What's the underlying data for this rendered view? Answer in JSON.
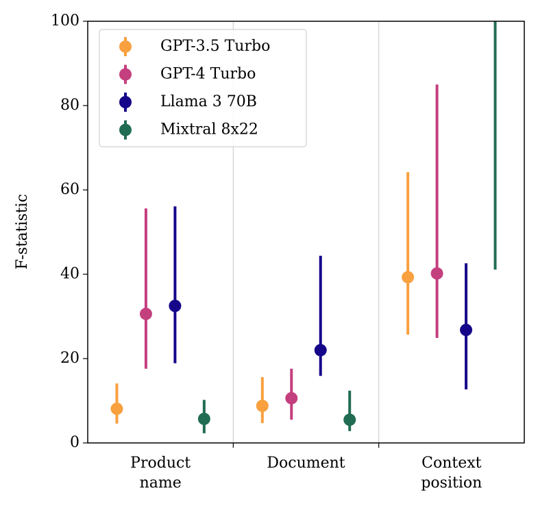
{
  "chart_data": {
    "type": "errorbar",
    "y_label": "F-statistic",
    "categories": [
      [
        "Product",
        "name"
      ],
      [
        "Document"
      ],
      [
        "Context",
        "position"
      ]
    ],
    "ylim": [
      0,
      100
    ],
    "yticks": [
      0,
      20,
      40,
      60,
      80,
      100
    ],
    "separators": true,
    "legend": "upper left",
    "series": [
      {
        "name": "GPT-3.5 Turbo",
        "color": "#f9a03f",
        "values": [
          8.1,
          8.8,
          39.3
        ],
        "lower": [
          4.6,
          4.7,
          25.7
        ],
        "upper": [
          14.1,
          15.6,
          64.2
        ]
      },
      {
        "name": "GPT-4 Turbo",
        "color": "#c43f7e",
        "values": [
          30.6,
          10.6,
          40.2
        ],
        "lower": [
          17.6,
          5.5,
          24.9
        ],
        "upper": [
          55.6,
          17.6,
          85.0
        ]
      },
      {
        "name": "Llama 3 70B",
        "color": "#15068a",
        "values": [
          32.5,
          22.0,
          26.8
        ],
        "lower": [
          18.9,
          15.9,
          12.7
        ],
        "upper": [
          56.1,
          44.4,
          42.6
        ]
      },
      {
        "name": "Mixtral 8x22",
        "color": "#216d54",
        "values": [
          5.7,
          5.5,
          null
        ],
        "lower": [
          2.3,
          2.8,
          41.1
        ],
        "upper": [
          10.2,
          12.4,
          null
        ]
      }
    ]
  }
}
